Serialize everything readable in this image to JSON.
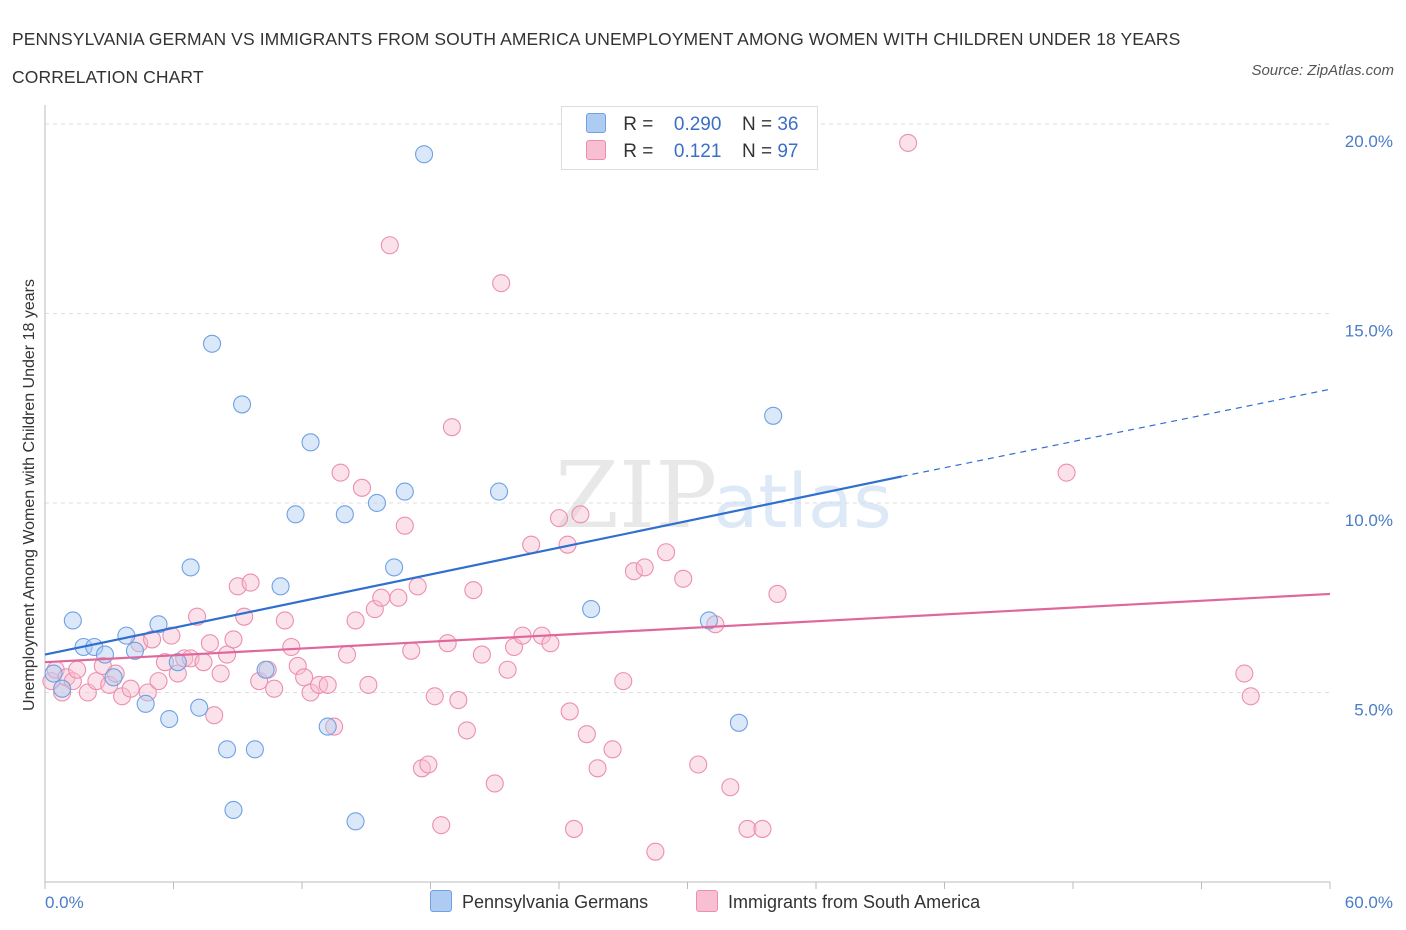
{
  "title": "PENNSYLVANIA GERMAN VS IMMIGRANTS FROM SOUTH AMERICA UNEMPLOYMENT AMONG WOMEN WITH CHILDREN UNDER 18 YEARS CORRELATION CHART",
  "source": "Source: ZipAtlas.com",
  "watermark": {
    "zip": "ZIP",
    "atlas": "atlas"
  },
  "legend": {
    "rows": [
      {
        "r_label": "R =",
        "r_value": "0.290",
        "n_label": "N =",
        "n_value": "36",
        "color": "#aecbf2"
      },
      {
        "r_label": "R =",
        "r_value": "0.121",
        "n_label": "N =",
        "n_value": "97",
        "color": "#f7bfd1"
      }
    ]
  },
  "bottom_legend": [
    {
      "label": "Pennsylvania Germans",
      "color": "#aecbf2"
    },
    {
      "label": "Immigrants from South America",
      "color": "#f7bfd1"
    }
  ],
  "chart_data": {
    "type": "scatter",
    "title": "PENNSYLVANIA GERMAN VS IMMIGRANTS FROM SOUTH AMERICA UNEMPLOYMENT AMONG WOMEN WITH CHILDREN UNDER 18 YEARS CORRELATION CHART",
    "xlabel": "",
    "ylabel": "Unemployment Among Women with Children Under 18 years",
    "xlim": [
      0,
      60
    ],
    "ylim": [
      0,
      20.5
    ],
    "x_tick_labels": [
      "0.0%",
      "60.0%"
    ],
    "y_ticks": [
      5,
      10,
      15,
      20
    ],
    "y_tick_labels": [
      "5.0%",
      "10.0%",
      "15.0%",
      "20.0%"
    ],
    "grid": true,
    "legend_position": "top-center",
    "series": [
      {
        "name": "Pennsylvania Germans",
        "color": "#6fa1e3",
        "fill": "#aecbf2",
        "trend": {
          "x": [
            0,
            40,
            60
          ],
          "y": [
            6.0,
            10.7,
            13.0
          ],
          "solid_until": 40,
          "color": "#2f6fcf"
        },
        "points": [
          [
            0.4,
            5.5
          ],
          [
            0.8,
            5.1
          ],
          [
            1.3,
            6.9
          ],
          [
            1.8,
            6.2
          ],
          [
            2.3,
            6.2
          ],
          [
            2.8,
            6.0
          ],
          [
            3.2,
            5.4
          ],
          [
            3.8,
            6.5
          ],
          [
            4.2,
            6.1
          ],
          [
            4.7,
            4.7
          ],
          [
            5.3,
            6.8
          ],
          [
            5.8,
            4.3
          ],
          [
            6.2,
            5.8
          ],
          [
            6.8,
            8.3
          ],
          [
            7.2,
            4.6
          ],
          [
            7.8,
            14.2
          ],
          [
            8.5,
            3.5
          ],
          [
            8.8,
            1.9
          ],
          [
            9.2,
            12.6
          ],
          [
            9.8,
            3.5
          ],
          [
            10.3,
            5.6
          ],
          [
            11.0,
            7.8
          ],
          [
            11.7,
            9.7
          ],
          [
            12.4,
            11.6
          ],
          [
            13.2,
            4.1
          ],
          [
            14.0,
            9.7
          ],
          [
            14.5,
            1.6
          ],
          [
            15.5,
            10.0
          ],
          [
            16.3,
            8.3
          ],
          [
            16.8,
            10.3
          ],
          [
            17.7,
            19.2
          ],
          [
            21.2,
            10.3
          ],
          [
            25.5,
            7.2
          ],
          [
            31.0,
            6.9
          ],
          [
            32.4,
            4.2
          ],
          [
            34.0,
            12.3
          ]
        ]
      },
      {
        "name": "Immigrants from South America",
        "color": "#ec8fae",
        "fill": "#f7bfd1",
        "trend": {
          "x": [
            0,
            60
          ],
          "y": [
            5.8,
            7.6
          ],
          "color": "#e0679a"
        },
        "points": [
          [
            0.3,
            5.3
          ],
          [
            0.5,
            5.6
          ],
          [
            0.8,
            5.0
          ],
          [
            1.0,
            5.4
          ],
          [
            1.3,
            5.3
          ],
          [
            1.5,
            5.6
          ],
          [
            2.0,
            5.0
          ],
          [
            2.4,
            5.3
          ],
          [
            2.7,
            5.7
          ],
          [
            3.0,
            5.2
          ],
          [
            3.3,
            5.5
          ],
          [
            3.6,
            4.9
          ],
          [
            4.0,
            5.1
          ],
          [
            4.4,
            6.3
          ],
          [
            4.8,
            5.0
          ],
          [
            5.0,
            6.4
          ],
          [
            5.3,
            5.3
          ],
          [
            5.6,
            5.8
          ],
          [
            5.9,
            6.5
          ],
          [
            6.2,
            5.5
          ],
          [
            6.5,
            5.9
          ],
          [
            6.8,
            5.9
          ],
          [
            7.1,
            7.0
          ],
          [
            7.4,
            5.8
          ],
          [
            7.7,
            6.3
          ],
          [
            7.9,
            4.4
          ],
          [
            8.2,
            5.5
          ],
          [
            8.5,
            6.0
          ],
          [
            8.8,
            6.4
          ],
          [
            9.0,
            7.8
          ],
          [
            9.3,
            7.0
          ],
          [
            9.6,
            7.9
          ],
          [
            10.0,
            5.3
          ],
          [
            10.4,
            5.6
          ],
          [
            10.7,
            5.1
          ],
          [
            11.2,
            6.9
          ],
          [
            11.5,
            6.2
          ],
          [
            11.8,
            5.7
          ],
          [
            12.1,
            5.4
          ],
          [
            12.4,
            5.0
          ],
          [
            12.8,
            5.2
          ],
          [
            13.2,
            5.2
          ],
          [
            13.5,
            4.1
          ],
          [
            13.8,
            10.8
          ],
          [
            14.1,
            6.0
          ],
          [
            14.5,
            6.9
          ],
          [
            14.8,
            10.4
          ],
          [
            15.1,
            5.2
          ],
          [
            15.4,
            7.2
          ],
          [
            15.7,
            7.5
          ],
          [
            16.1,
            16.8
          ],
          [
            16.5,
            7.5
          ],
          [
            16.8,
            9.4
          ],
          [
            17.1,
            6.1
          ],
          [
            17.4,
            7.8
          ],
          [
            17.6,
            3.0
          ],
          [
            17.9,
            3.1
          ],
          [
            18.2,
            4.9
          ],
          [
            18.5,
            1.5
          ],
          [
            18.8,
            6.3
          ],
          [
            19.0,
            12.0
          ],
          [
            19.3,
            4.8
          ],
          [
            19.7,
            4.0
          ],
          [
            20.0,
            7.7
          ],
          [
            20.4,
            6.0
          ],
          [
            21.0,
            2.6
          ],
          [
            21.3,
            15.8
          ],
          [
            21.6,
            5.6
          ],
          [
            21.9,
            6.2
          ],
          [
            22.3,
            6.5
          ],
          [
            22.7,
            8.9
          ],
          [
            23.2,
            6.5
          ],
          [
            23.6,
            6.3
          ],
          [
            24.0,
            9.6
          ],
          [
            24.4,
            8.9
          ],
          [
            24.7,
            1.4
          ],
          [
            25.0,
            9.7
          ],
          [
            25.3,
            3.9
          ],
          [
            25.8,
            3.0
          ],
          [
            26.5,
            3.5
          ],
          [
            27.0,
            5.3
          ],
          [
            27.5,
            8.2
          ],
          [
            28.0,
            8.3
          ],
          [
            28.5,
            0.8
          ],
          [
            29.0,
            8.7
          ],
          [
            29.8,
            8.0
          ],
          [
            30.5,
            3.1
          ],
          [
            31.3,
            6.8
          ],
          [
            32.0,
            2.5
          ],
          [
            32.8,
            1.4
          ],
          [
            33.5,
            1.4
          ],
          [
            34.2,
            7.6
          ],
          [
            40.3,
            19.5
          ],
          [
            47.7,
            10.8
          ],
          [
            56.0,
            5.5
          ],
          [
            56.3,
            4.9
          ],
          [
            24.5,
            4.5
          ]
        ]
      }
    ]
  }
}
